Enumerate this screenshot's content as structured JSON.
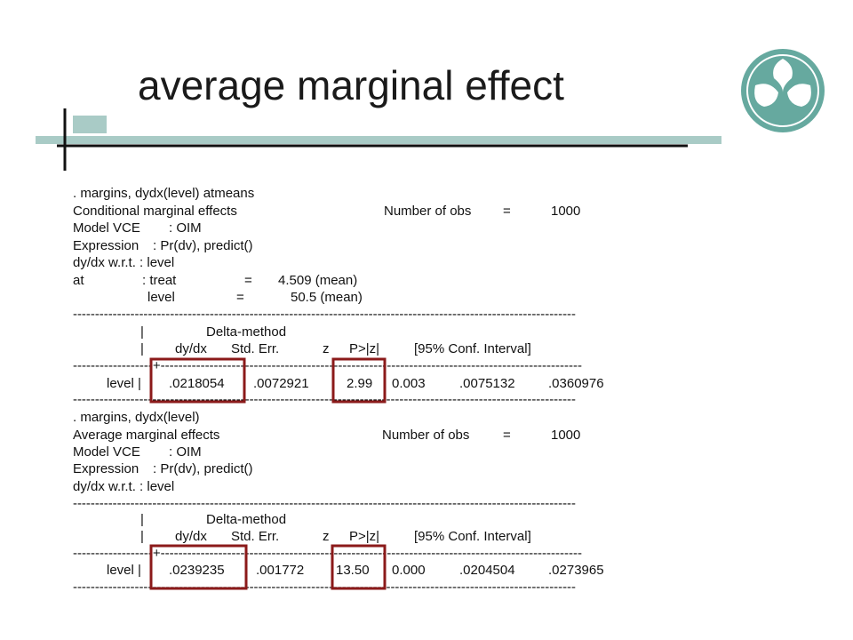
{
  "title": "average marginal effect",
  "output": [
    {
      "lines": [
        [
          ". margins, dydx(level) atmeans"
        ],
        [
          "Conditional marginal effects",
          "Number of obs",
          "=",
          "1000"
        ],
        [
          "Model VCE",
          ": OIM"
        ],
        [
          "Expression",
          ": Pr(dv), predict()"
        ],
        [
          "dy/dx w.r.t. : level"
        ],
        [
          "at",
          ": treat",
          "=",
          "4.509 (mean)"
        ],
        [
          "level",
          "=",
          "50.5 (mean)"
        ],
        [
          "------------------------------------------------------------------------------------------------------------------"
        ],
        [
          "|",
          "Delta-method"
        ],
        [
          "|",
          "dy/dx",
          "Std. Err.",
          "z",
          "P>|z|",
          "[95% Conf. Interval]"
        ],
        [
          "------------------+-----------------------------------------------------------------------------------------------"
        ],
        [
          "level |",
          ".0218054",
          ".0072921",
          "2.99",
          "0.003",
          ".0075132",
          ".0360976"
        ],
        [
          "------------------------------------------------------------------------------------------------------------------"
        ]
      ]
    },
    {
      "lines": [
        [
          ". margins, dydx(level)"
        ],
        [
          "Average marginal effects",
          "Number of obs",
          "=",
          "1000"
        ],
        [
          "Model VCE",
          ": OIM"
        ],
        [
          "Expression",
          ": Pr(dv), predict()"
        ],
        [
          "dy/dx w.r.t. : level"
        ],
        [
          "------------------------------------------------------------------------------------------------------------------"
        ],
        [
          "|",
          "Delta-method"
        ],
        [
          "|",
          "dy/dx",
          "Std. Err.",
          "z",
          "P>|z|",
          "[95% Conf. Interval]"
        ],
        [
          "------------------+-----------------------------------------------------------------------------------------------"
        ],
        [
          "level |",
          ".0239235",
          ".001772",
          "13.50",
          "0.000",
          ".0204504",
          ".0273965"
        ],
        [
          "------------------------------------------------------------------------------------------------------------------"
        ]
      ]
    }
  ]
}
